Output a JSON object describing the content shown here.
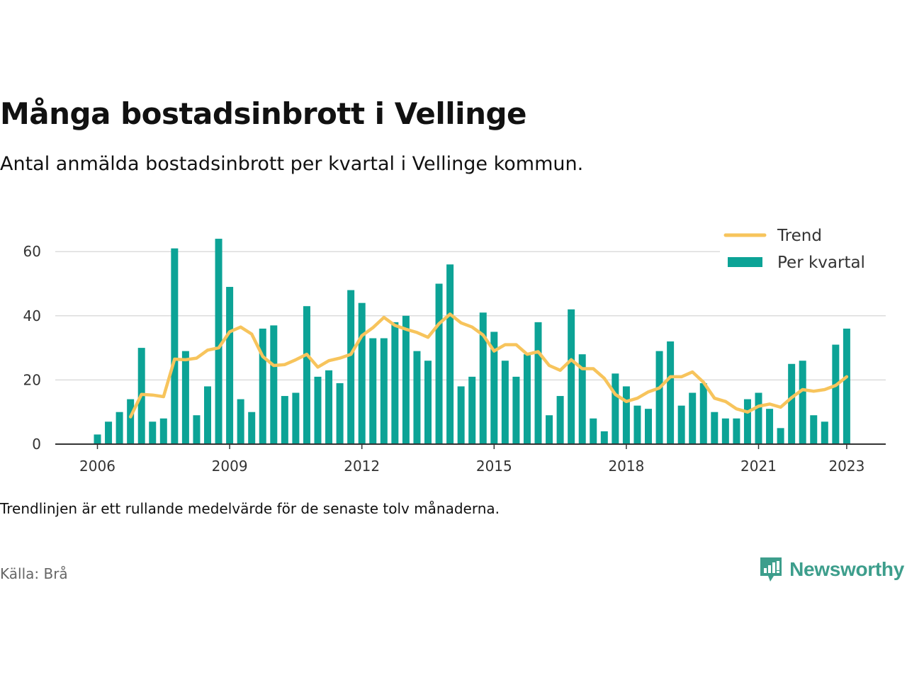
{
  "header": {
    "title": "Många bostadsinbrott i Vellinge",
    "subtitle": "Antal anmälda bostadsinbrott per kvartal i Vellinge kommun."
  },
  "footer": {
    "note": "Trendlinjen är ett rullande medelvärde för de senaste tolv månaderna.",
    "source": "Källa: Brå",
    "brand": "Newsworthy"
  },
  "colors": {
    "bars": "#0ca396",
    "trend": "#f7c45c",
    "grid": "#dcdcdc",
    "axis": "#333333",
    "brand": "#3d9e8c"
  },
  "chart_data": {
    "type": "bar",
    "x_ticks": [
      "2006",
      "2009",
      "2012",
      "2015",
      "2018",
      "2021",
      "2023"
    ],
    "y_ticks": [
      0,
      20,
      40,
      60
    ],
    "ylim": [
      0,
      70
    ],
    "grid": "horizontal",
    "legend_position": "top-right",
    "legend": [
      "Trend",
      "Per kvartal"
    ],
    "x": [
      "2006-Q1",
      "2006-Q2",
      "2006-Q3",
      "2006-Q4",
      "2007-Q1",
      "2007-Q2",
      "2007-Q3",
      "2007-Q4",
      "2008-Q1",
      "2008-Q2",
      "2008-Q3",
      "2008-Q4",
      "2009-Q1",
      "2009-Q2",
      "2009-Q3",
      "2009-Q4",
      "2010-Q1",
      "2010-Q2",
      "2010-Q3",
      "2010-Q4",
      "2011-Q1",
      "2011-Q2",
      "2011-Q3",
      "2011-Q4",
      "2012-Q1",
      "2012-Q2",
      "2012-Q3",
      "2012-Q4",
      "2013-Q1",
      "2013-Q2",
      "2013-Q3",
      "2013-Q4",
      "2014-Q1",
      "2014-Q2",
      "2014-Q3",
      "2014-Q4",
      "2015-Q1",
      "2015-Q2",
      "2015-Q3",
      "2015-Q4",
      "2016-Q1",
      "2016-Q2",
      "2016-Q3",
      "2016-Q4",
      "2017-Q1",
      "2017-Q2",
      "2017-Q3",
      "2017-Q4",
      "2018-Q1",
      "2018-Q2",
      "2018-Q3",
      "2018-Q4",
      "2019-Q1",
      "2019-Q2",
      "2019-Q3",
      "2019-Q4",
      "2020-Q1",
      "2020-Q2",
      "2020-Q3",
      "2020-Q4",
      "2021-Q1",
      "2021-Q2",
      "2021-Q3",
      "2021-Q4",
      "2022-Q1",
      "2022-Q2",
      "2022-Q3",
      "2022-Q4",
      "2023-Q1"
    ],
    "series": [
      {
        "name": "Per kvartal",
        "type": "bar",
        "values": [
          3,
          7,
          10,
          14,
          30,
          7,
          8,
          61,
          29,
          9,
          18,
          64,
          49,
          14,
          10,
          36,
          37,
          15,
          16,
          43,
          21,
          23,
          19,
          48,
          44,
          33,
          33,
          38,
          40,
          29,
          26,
          50,
          56,
          18,
          21,
          41,
          35,
          26,
          21,
          28,
          38,
          9,
          15,
          42,
          28,
          8,
          4,
          22,
          18,
          12,
          11,
          29,
          32,
          12,
          16,
          19,
          10,
          8,
          8,
          14,
          16,
          11,
          5,
          25,
          26,
          9,
          7,
          31,
          36
        ]
      },
      {
        "name": "Trend",
        "type": "line",
        "values": [
          null,
          null,
          null,
          8.5,
          15.5,
          15.3,
          14.8,
          26.5,
          26.3,
          26.8,
          29.3,
          30,
          35,
          36.5,
          34.3,
          27.3,
          24.5,
          24.8,
          26.3,
          28,
          24,
          26,
          26.8,
          28,
          33.8,
          36.3,
          39.5,
          37,
          35.8,
          34.8,
          33.3,
          37.5,
          40.5,
          37.8,
          36.5,
          34,
          29,
          31,
          31,
          28,
          28.8,
          24.5,
          23,
          26.3,
          23.5,
          23.5,
          20.5,
          15.5,
          13.3,
          14.3,
          16.3,
          17.5,
          21,
          21,
          22.5,
          19.3,
          14.3,
          13.3,
          11,
          10,
          11.8,
          12.5,
          11.5,
          14.5,
          17,
          16.5,
          17,
          18.3,
          21
        ]
      }
    ]
  }
}
